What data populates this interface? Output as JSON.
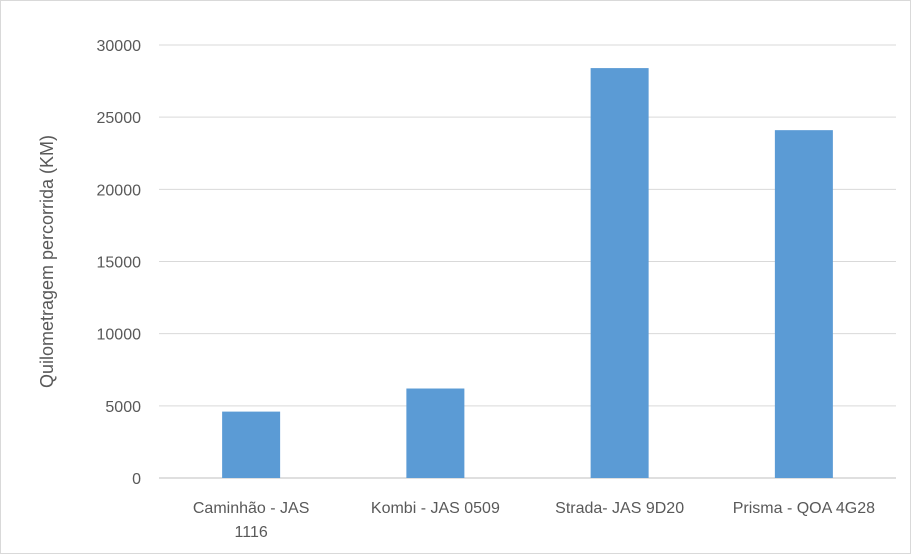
{
  "chart_data": {
    "type": "bar",
    "categories": [
      [
        "Caminhão - JAS",
        "1116"
      ],
      [
        "Kombi - JAS 0509"
      ],
      [
        "Strada- JAS 9D20"
      ],
      [
        "Prisma - QOA 4G28"
      ]
    ],
    "values": [
      4600,
      6200,
      28400,
      24100
    ],
    "ylabel": "Quilometragem percorrida (KM)",
    "xlabel": "",
    "ylim": [
      0,
      30000
    ],
    "yticks": [
      0,
      5000,
      10000,
      15000,
      20000,
      25000,
      30000
    ],
    "grid": true,
    "legend": "none",
    "bar_color": "#5b9bd5"
  }
}
